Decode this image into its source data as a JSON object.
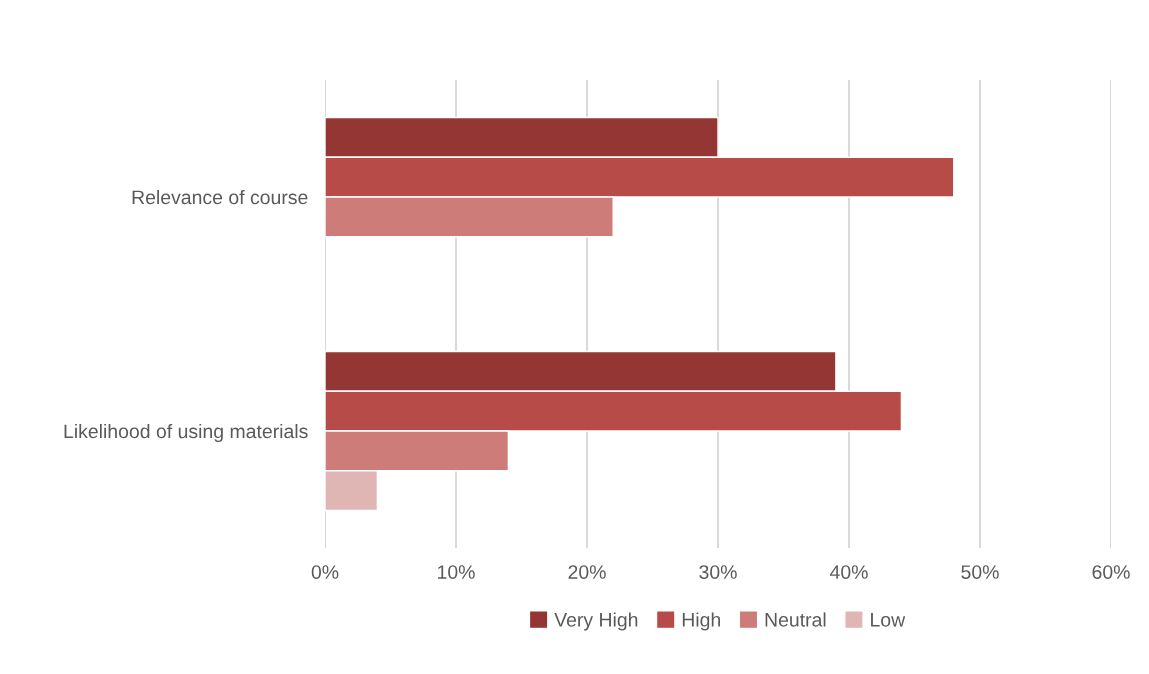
{
  "chart_data": {
    "type": "bar",
    "orientation": "horizontal",
    "categories": [
      "Relevance of course",
      "Likelihood of using materials"
    ],
    "series": [
      {
        "name": "Very High",
        "color": "#943634",
        "values": [
          30,
          39
        ]
      },
      {
        "name": "High",
        "color": "#b64b48",
        "values": [
          48,
          44
        ]
      },
      {
        "name": "Neutral",
        "color": "#cd7c7a",
        "values": [
          22,
          14
        ]
      },
      {
        "name": "Low",
        "color": "#e0b6b5",
        "values": [
          null,
          4
        ]
      }
    ],
    "xlim": [
      0,
      60
    ],
    "xticks": [
      {
        "value": 0,
        "label": "0%"
      },
      {
        "value": 10,
        "label": "10%"
      },
      {
        "value": 20,
        "label": "20%"
      },
      {
        "value": 30,
        "label": "30%"
      },
      {
        "value": 40,
        "label": "40%"
      },
      {
        "value": 50,
        "label": "50%"
      },
      {
        "value": 60,
        "label": "60%"
      }
    ],
    "grid": "x",
    "legend": "bottom"
  }
}
